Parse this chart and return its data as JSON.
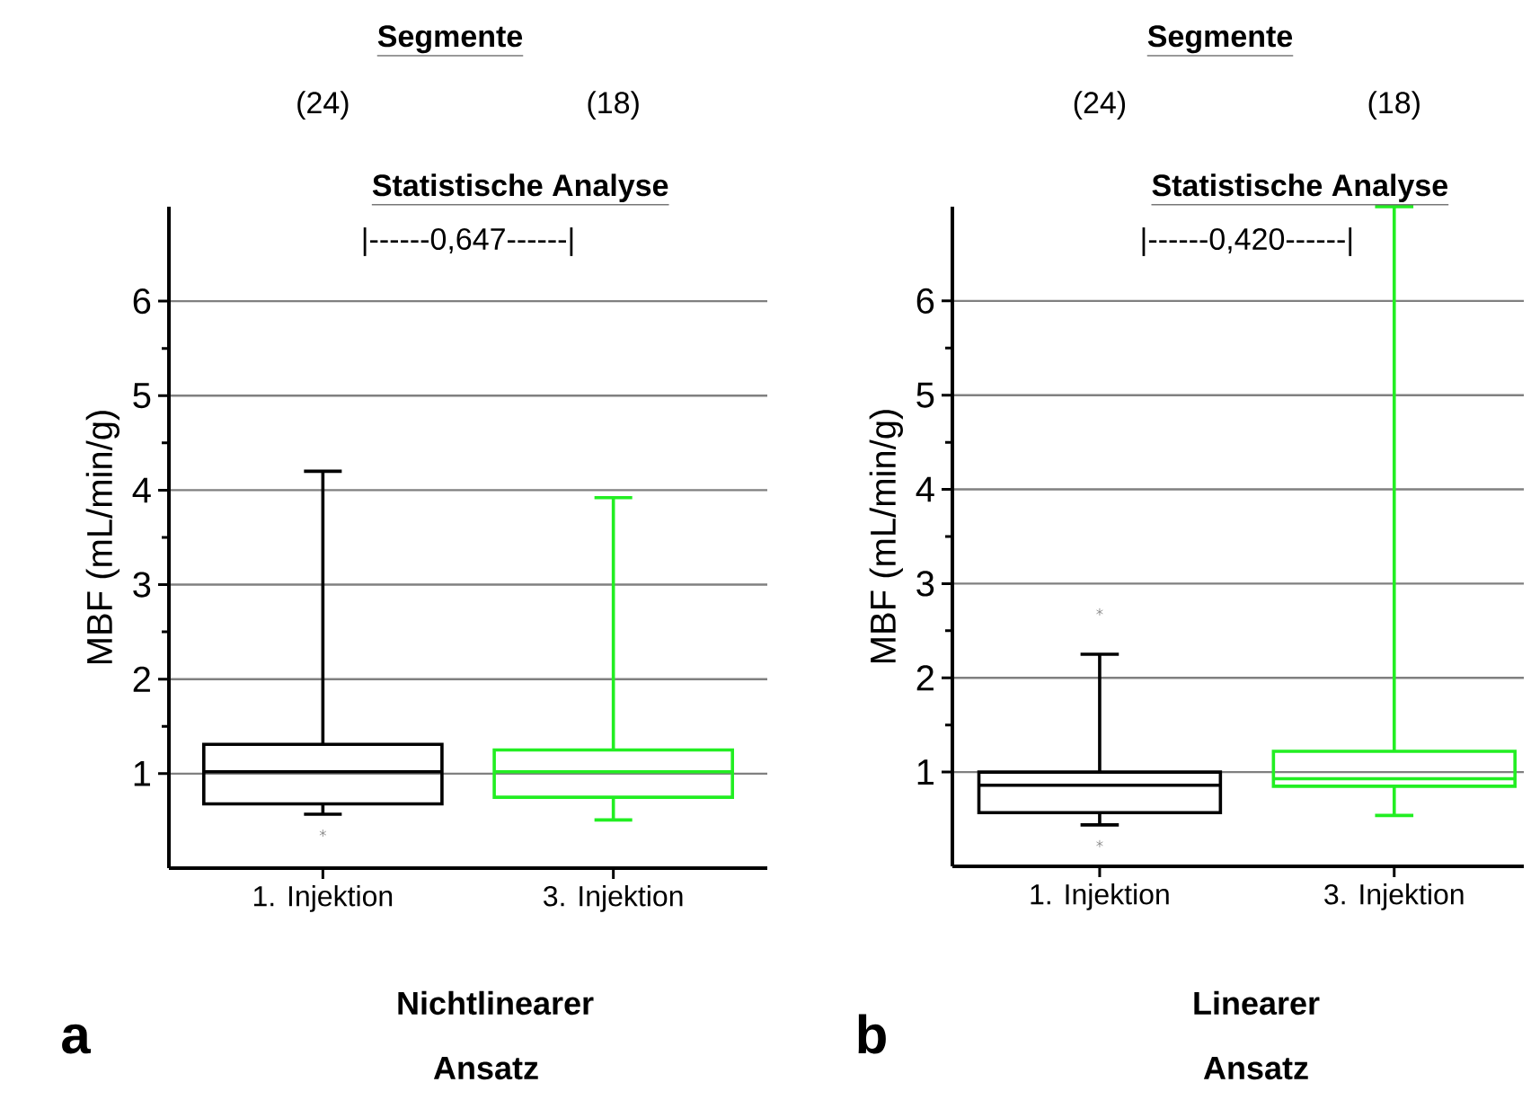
{
  "chart_data": [
    {
      "type": "box",
      "title": "Segmente",
      "xlabel": "Nichtlinearer Ansatz",
      "ylabel": "MBF (mL/min/g)",
      "categories": [
        "1. Injektion",
        "3. Injektion"
      ],
      "colors": [
        "#000000",
        "#22ee22"
      ],
      "ylim": [
        0,
        7
      ],
      "yticks": [
        1,
        2,
        3,
        4,
        5,
        6
      ],
      "grid": "y",
      "boxes": [
        {
          "low": 0.57,
          "q1": 0.68,
          "median": 1.02,
          "q3": 1.31,
          "high": 4.2,
          "outliers": [
            0.37
          ]
        },
        {
          "low": 0.51,
          "q1": 0.75,
          "median": 1.02,
          "q3": 1.25,
          "high": 3.92
        }
      ],
      "annotations": [
        "(24)",
        "(18)",
        "Statistische Analyse",
        "|------0,647------|",
        "a"
      ]
    },
    {
      "type": "box",
      "title": "Segmente",
      "xlabel": "Linearer Ansatz",
      "ylabel": "MBF (mL/min/g)",
      "categories": [
        "1. Injektion",
        "3. Injektion"
      ],
      "colors": [
        "#000000",
        "#22ee22"
      ],
      "ylim": [
        0,
        7
      ],
      "yticks": [
        1,
        2,
        3,
        4,
        5,
        6
      ],
      "grid": "y",
      "boxes": [
        {
          "low": 0.44,
          "q1": 0.57,
          "median": 0.86,
          "q3": 1.0,
          "high": 2.25,
          "outliers": [
            2.7,
            0.24
          ]
        },
        {
          "low": 0.54,
          "q1": 0.85,
          "median": 0.93,
          "q3": 1.22,
          "high": 7.0
        }
      ],
      "annotations": [
        "(24)",
        "(18)",
        "Statistische Analyse",
        "|------0,420------|",
        "b"
      ]
    }
  ]
}
